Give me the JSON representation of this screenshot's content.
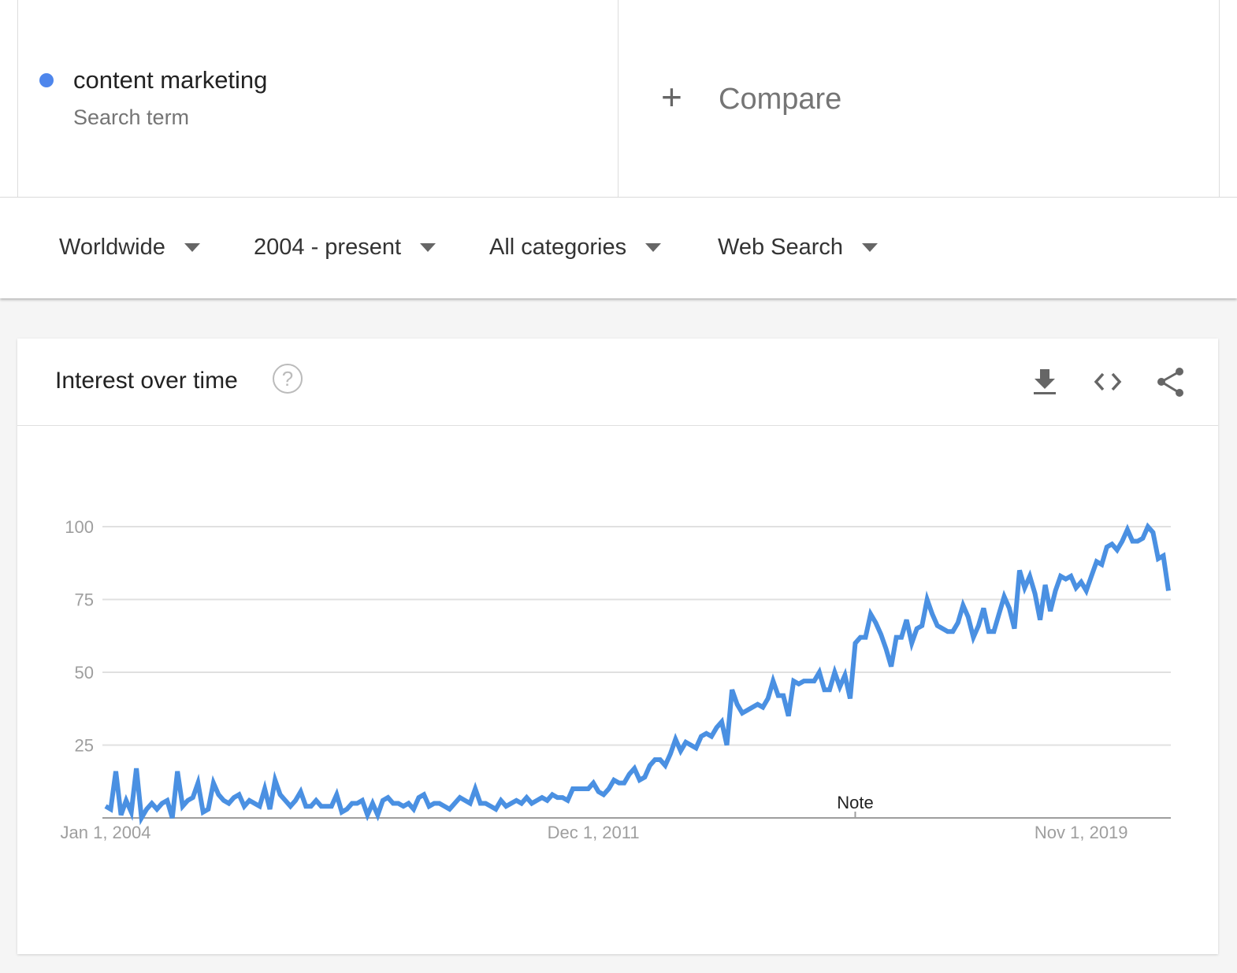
{
  "search_term": {
    "label": "content marketing",
    "type": "Search term",
    "color": "#4e86ec"
  },
  "compare": {
    "icon": "plus-icon",
    "label": "Compare"
  },
  "filters": [
    {
      "label": "Worldwide"
    },
    {
      "label": "2004 - present"
    },
    {
      "label": "All categories"
    },
    {
      "label": "Web Search"
    }
  ],
  "card": {
    "title": "Interest over time",
    "help_icon": "question-circle-icon",
    "actions": [
      "download-icon",
      "embed-code-icon",
      "share-icon"
    ]
  },
  "chart_data": {
    "type": "line",
    "frequency": "monthly",
    "x_start": "Jan 1, 2004",
    "ylim": [
      0,
      100
    ],
    "yticks": [
      25,
      50,
      75,
      100
    ],
    "ytick_labels": [
      "25",
      "50",
      "75",
      "100"
    ],
    "xtick_labels": [
      {
        "index": 0,
        "label": "Jan 1, 2004"
      },
      {
        "index": 95,
        "label": "Dec 1, 2011"
      },
      {
        "index": 190,
        "label": "Nov 1, 2019"
      }
    ],
    "annotations": [
      {
        "index": 146,
        "label": "Note"
      }
    ],
    "grid": true,
    "line_color": "#4a90e2",
    "series": [
      {
        "values": [
          4,
          3,
          16,
          1,
          6,
          2,
          17,
          0,
          3,
          5,
          3,
          5,
          6,
          0,
          16,
          4,
          6,
          7,
          12,
          2,
          3,
          12,
          8,
          6,
          5,
          7,
          8,
          4,
          6,
          5,
          4,
          10,
          3,
          13,
          8,
          6,
          4,
          6,
          9,
          4,
          4,
          6,
          4,
          4,
          4,
          8,
          2,
          3,
          5,
          5,
          6,
          1,
          5,
          1,
          6,
          7,
          5,
          5,
          4,
          5,
          3,
          7,
          8,
          4,
          5,
          5,
          4,
          3,
          5,
          7,
          6,
          5,
          10,
          5,
          5,
          4,
          3,
          6,
          4,
          5,
          6,
          5,
          7,
          5,
          6,
          7,
          6,
          8,
          7,
          7,
          6,
          10,
          10,
          10,
          10,
          12,
          9,
          8,
          10,
          13,
          12,
          12,
          15,
          17,
          13,
          14,
          18,
          20,
          20,
          18,
          22,
          27,
          23,
          26,
          25,
          24,
          28,
          29,
          28,
          31,
          33,
          25,
          44,
          39,
          36,
          37,
          38,
          39,
          38,
          41,
          47,
          42,
          42,
          35,
          47,
          46,
          47,
          47,
          47,
          50,
          44,
          44,
          50,
          45,
          49,
          41,
          60,
          62,
          62,
          70,
          67,
          63,
          58,
          52,
          62,
          62,
          68,
          60,
          65,
          66,
          75,
          70,
          66,
          65,
          64,
          64,
          67,
          73,
          69,
          62,
          66,
          72,
          64,
          64,
          70,
          76,
          72,
          65,
          85,
          79,
          83,
          77,
          68,
          80,
          71,
          78,
          83,
          82,
          83,
          79,
          81,
          78,
          83,
          88,
          87,
          93,
          94,
          92,
          95,
          99,
          95,
          95,
          96,
          100,
          98,
          89,
          90,
          78
        ]
      }
    ]
  }
}
